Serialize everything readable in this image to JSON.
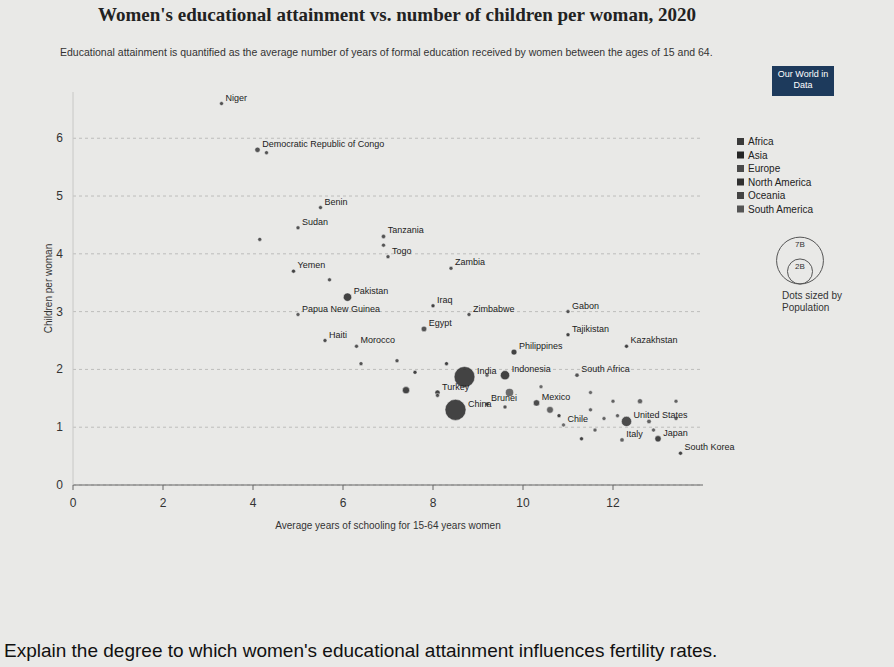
{
  "chart_data": {
    "type": "scatter",
    "title": "Women's educational attainment vs. number of children per woman, 2020",
    "subtitle": "Educational attainment is quantified as the average number of years of formal education received by women between the ages of 15 and 64.",
    "logo": "Our World in Data",
    "x_label": "Average years of schooling for 15-64 years women",
    "y_label": "Children per woman",
    "xlim": [
      0,
      14
    ],
    "ylim": [
      0,
      6.8
    ],
    "xticks": [
      0,
      2,
      4,
      6,
      8,
      10,
      12
    ],
    "yticks": [
      0,
      1,
      2,
      3,
      4,
      5,
      6
    ],
    "grid": true,
    "legend": "right",
    "size_legend": {
      "title": "Dots sized by Population",
      "values": [
        7000,
        2000
      ],
      "value_labels": [
        "7B",
        "2B"
      ]
    },
    "series": [
      {
        "name": "Africa",
        "color": "#3a3a3a",
        "x": [
          3.3,
          4.1,
          4.3,
          5.5,
          5.0,
          6.9,
          7.0,
          8.4,
          8.8,
          11.0,
          7.8,
          6.3,
          11.2,
          4.15,
          6.9,
          5.7,
          7.2,
          6.4,
          8.1,
          9.6
        ],
        "values": [
          6.6,
          5.8,
          5.75,
          4.8,
          4.45,
          4.3,
          3.95,
          3.75,
          2.95,
          3.0,
          2.7,
          2.4,
          1.9,
          4.25,
          4.15,
          3.55,
          2.15,
          2.1,
          1.55,
          1.35
        ],
        "sizes": [
          24,
          90,
          20,
          12,
          44,
          60,
          8,
          19,
          15,
          2,
          100,
          37,
          59,
          25,
          30,
          20,
          12,
          18,
          11,
          6
        ],
        "labels": [
          "Niger",
          "Democratic Republic of Congo",
          null,
          "Benin",
          "Sudan",
          "Tanzania",
          "Togo",
          "Zambia",
          "Zimbabwe",
          "Gabon",
          "Egypt",
          "Morocco",
          "South Africa",
          null,
          null,
          null,
          null,
          null,
          null,
          null
        ]
      },
      {
        "name": "Asia",
        "color": "#262626",
        "x": [
          4.9,
          6.1,
          8.0,
          11.0,
          12.3,
          9.8,
          8.7,
          8.5,
          9.6,
          8.1,
          9.2,
          13.0,
          13.5,
          7.4,
          10.8,
          11.3,
          8.3,
          7.6
        ],
        "values": [
          3.7,
          3.25,
          3.1,
          2.6,
          2.4,
          2.3,
          1.87,
          1.3,
          1.9,
          1.6,
          1.4,
          0.8,
          0.55,
          1.64,
          1.2,
          0.8,
          2.1,
          1.95
        ],
        "sizes": [
          30,
          220,
          40,
          10,
          19,
          110,
          1380,
          1410,
          274,
          84,
          1,
          126,
          52,
          165,
          30,
          24,
          34,
          17
        ],
        "labels": [
          "Yemen",
          "Pakistan",
          "Iraq",
          "Tajikistan",
          "Kazakhstan",
          "Philippines",
          "India",
          "China",
          "Indonesia",
          "Turkey",
          "Brunei",
          "Japan",
          "South Korea",
          null,
          null,
          null,
          null,
          null
        ]
      },
      {
        "name": "Europe",
        "color": "#4a4a4a",
        "x": [
          12.2,
          11.5,
          11.8,
          12.0,
          12.6,
          12.8,
          13.4,
          11.6,
          12.9,
          13.4,
          12.1,
          10.6
        ],
        "values": [
          0.78,
          1.3,
          1.15,
          1.45,
          1.45,
          1.1,
          1.45,
          0.95,
          0.95,
          1.15,
          1.2,
          1.3
        ],
        "sizes": [
          60,
          10,
          40,
          5,
          84,
          67,
          10,
          38,
          17,
          5,
          9,
          146
        ],
        "labels": [
          "Italy",
          null,
          null,
          null,
          null,
          null,
          null,
          null,
          null,
          null,
          null,
          null
        ]
      },
      {
        "name": "North America",
        "color": "#303030",
        "x": [
          12.3,
          10.3,
          5.6
        ],
        "values": [
          1.1,
          1.42,
          2.5
        ],
        "sizes": [
          331,
          129,
          11
        ],
        "labels": [
          "United States",
          "Mexico",
          "Haiti"
        ]
      },
      {
        "name": "Oceania",
        "color": "#444444",
        "x": [
          5.0
        ],
        "values": [
          2.95
        ],
        "sizes": [
          9
        ],
        "labels": [
          "Papua New Guinea"
        ]
      },
      {
        "name": "South America",
        "color": "#555555",
        "x": [
          10.9,
          9.7,
          10.4,
          9.2,
          11.5
        ],
        "values": [
          1.04,
          1.6,
          1.7,
          1.9,
          1.6
        ],
        "sizes": [
          19,
          213,
          45,
          33,
          51
        ],
        "labels": [
          "Chile",
          null,
          null,
          null,
          null
        ]
      }
    ]
  },
  "question": "Explain the degree to which women's educational attainment influences fertility rates."
}
